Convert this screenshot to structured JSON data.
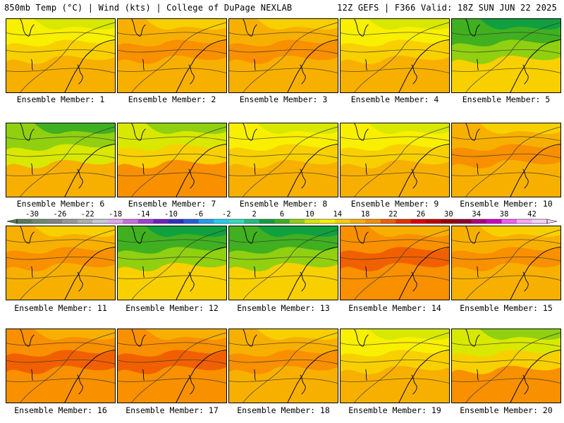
{
  "header": {
    "left": "850mb Temp (°C) | Wind (kts) | College of DuPage NEXLAB",
    "right": "12Z GEFS | F366 Valid: 18Z SUN JUN 22 2025"
  },
  "panel_label_prefix": "Ensemble Member:",
  "members": [
    {
      "label": "Ensemble Member: 1",
      "regime": "mild"
    },
    {
      "label": "Ensemble Member: 2",
      "regime": "warm"
    },
    {
      "label": "Ensemble Member: 3",
      "regime": "warm"
    },
    {
      "label": "Ensemble Member: 4",
      "regime": "mild"
    },
    {
      "label": "Ensemble Member: 5",
      "regime": "cool"
    },
    {
      "label": "Ensemble Member: 6",
      "regime": "cool-nw"
    },
    {
      "label": "Ensemble Member: 7",
      "regime": "cool-ne"
    },
    {
      "label": "Ensemble Member: 8",
      "regime": "mild"
    },
    {
      "label": "Ensemble Member: 9",
      "regime": "mild"
    },
    {
      "label": "Ensemble Member: 10",
      "regime": "warm"
    },
    {
      "label": "Ensemble Member: 11",
      "regime": "warm"
    },
    {
      "label": "Ensemble Member: 12",
      "regime": "cool"
    },
    {
      "label": "Ensemble Member: 13",
      "regime": "cool"
    },
    {
      "label": "Ensemble Member: 14",
      "regime": "hot"
    },
    {
      "label": "Ensemble Member: 15",
      "regime": "warm"
    },
    {
      "label": "Ensemble Member: 16",
      "regime": "hot"
    },
    {
      "label": "Ensemble Member: 17",
      "regime": "hot"
    },
    {
      "label": "Ensemble Member: 18",
      "regime": "warm"
    },
    {
      "label": "Ensemble Member: 19",
      "regime": "mild"
    },
    {
      "label": "Ensemble Member: 20",
      "regime": "cool-ne"
    }
  ],
  "colorbar": {
    "ticks": [
      "-30",
      "-26",
      "-22",
      "-18",
      "-14",
      "-10",
      "-6",
      "-2",
      "2",
      "6",
      "10",
      "14",
      "18",
      "22",
      "26",
      "30",
      "34",
      "38",
      "42"
    ],
    "colors": [
      "#5a7a5a",
      "#6e8a6e",
      "#848484",
      "#9a9a9a",
      "#b0b0b0",
      "#c8c8d8",
      "#e0a8f0",
      "#c870e0",
      "#a040d0",
      "#7020c0",
      "#3030c0",
      "#2060e0",
      "#20a0f0",
      "#20d0f0",
      "#30e0c0",
      "#20c080",
      "#10a040",
      "#40b020",
      "#90d010",
      "#d8e800",
      "#f8f000",
      "#f8d000",
      "#f8b000",
      "#f89000",
      "#f06000",
      "#e83000",
      "#e00000",
      "#c00000",
      "#980000",
      "#900030",
      "#b00080",
      "#d000c0",
      "#f060f0",
      "#f8a8f8",
      "#f8d0f8"
    ]
  }
}
